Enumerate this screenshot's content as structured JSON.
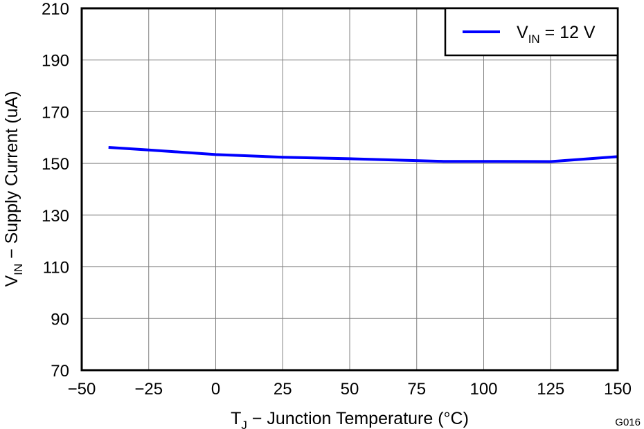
{
  "chart_data": {
    "type": "line",
    "x_ticks": [
      "−50",
      "−25",
      "0",
      "25",
      "50",
      "75",
      "100",
      "125",
      "150"
    ],
    "y_ticks": [
      "70",
      "90",
      "110",
      "130",
      "150",
      "170",
      "190",
      "210"
    ],
    "xlim": [
      -50,
      150
    ],
    "ylim": [
      70,
      210
    ],
    "grid": true,
    "legend_position": "top-right",
    "xlabel": {
      "main": "T",
      "sub": "J",
      "rest": " − Junction Temperature (°C)"
    },
    "ylabel": {
      "main": "V",
      "sub": "IN",
      "rest": " − Supply Current (uA)"
    },
    "series": [
      {
        "name": {
          "main": "V",
          "sub": "IN",
          "rest": " = 12 V"
        },
        "color": "#0000ff",
        "x": [
          -40,
          -25,
          0,
          25,
          50,
          85,
          105,
          125,
          150
        ],
        "y": [
          156.2,
          155.2,
          153.4,
          152.4,
          151.8,
          150.8,
          150.8,
          150.7,
          152.6
        ]
      }
    ],
    "figure_code": "G016"
  }
}
